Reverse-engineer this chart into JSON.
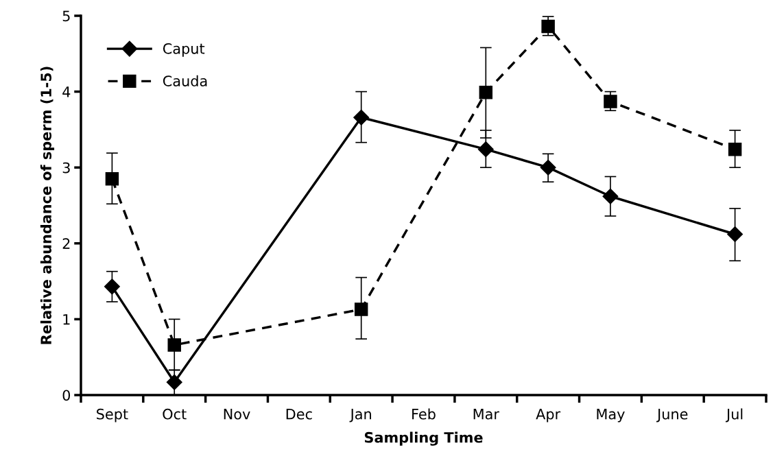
{
  "chart_data": {
    "type": "line",
    "xlabel": "Sampling Time",
    "ylabel": "Relative abundance of sperm (1-5)",
    "categories": [
      "Sept",
      "Oct",
      "Nov",
      "Dec",
      "Jan",
      "Feb",
      "Mar",
      "Apr",
      "May",
      "June",
      "Jul"
    ],
    "series": [
      {
        "name": "Caput",
        "color": "#000000",
        "marker": "diamond",
        "line_style": "solid",
        "values": [
          1.43,
          0.17,
          null,
          null,
          3.66,
          null,
          3.24,
          3.0,
          2.62,
          null,
          2.12
        ],
        "errors": [
          [
            1.23,
            1.63
          ],
          [
            0.0,
            0.33
          ],
          null,
          null,
          [
            3.33,
            4.0
          ],
          null,
          [
            3.0,
            3.49
          ],
          [
            2.81,
            3.18
          ],
          [
            2.36,
            2.88
          ],
          null,
          [
            1.77,
            2.46
          ]
        ]
      },
      {
        "name": "Cauda",
        "color": "#000000",
        "marker": "square",
        "line_style": "dashed",
        "values": [
          2.85,
          0.66,
          null,
          null,
          1.13,
          null,
          3.99,
          4.86,
          3.87,
          null,
          3.24
        ],
        "errors": [
          [
            2.52,
            3.19
          ],
          [
            0.33,
            1.0
          ],
          null,
          null,
          [
            0.74,
            1.55
          ],
          null,
          [
            3.39,
            4.58
          ],
          [
            4.74,
            4.99
          ],
          [
            3.75,
            4.0
          ],
          null,
          [
            3.0,
            3.49
          ]
        ]
      }
    ],
    "ylim": [
      0,
      5
    ],
    "yticks": [
      0,
      1,
      2,
      3,
      4,
      5
    ],
    "grid": false,
    "legend": "top left"
  }
}
